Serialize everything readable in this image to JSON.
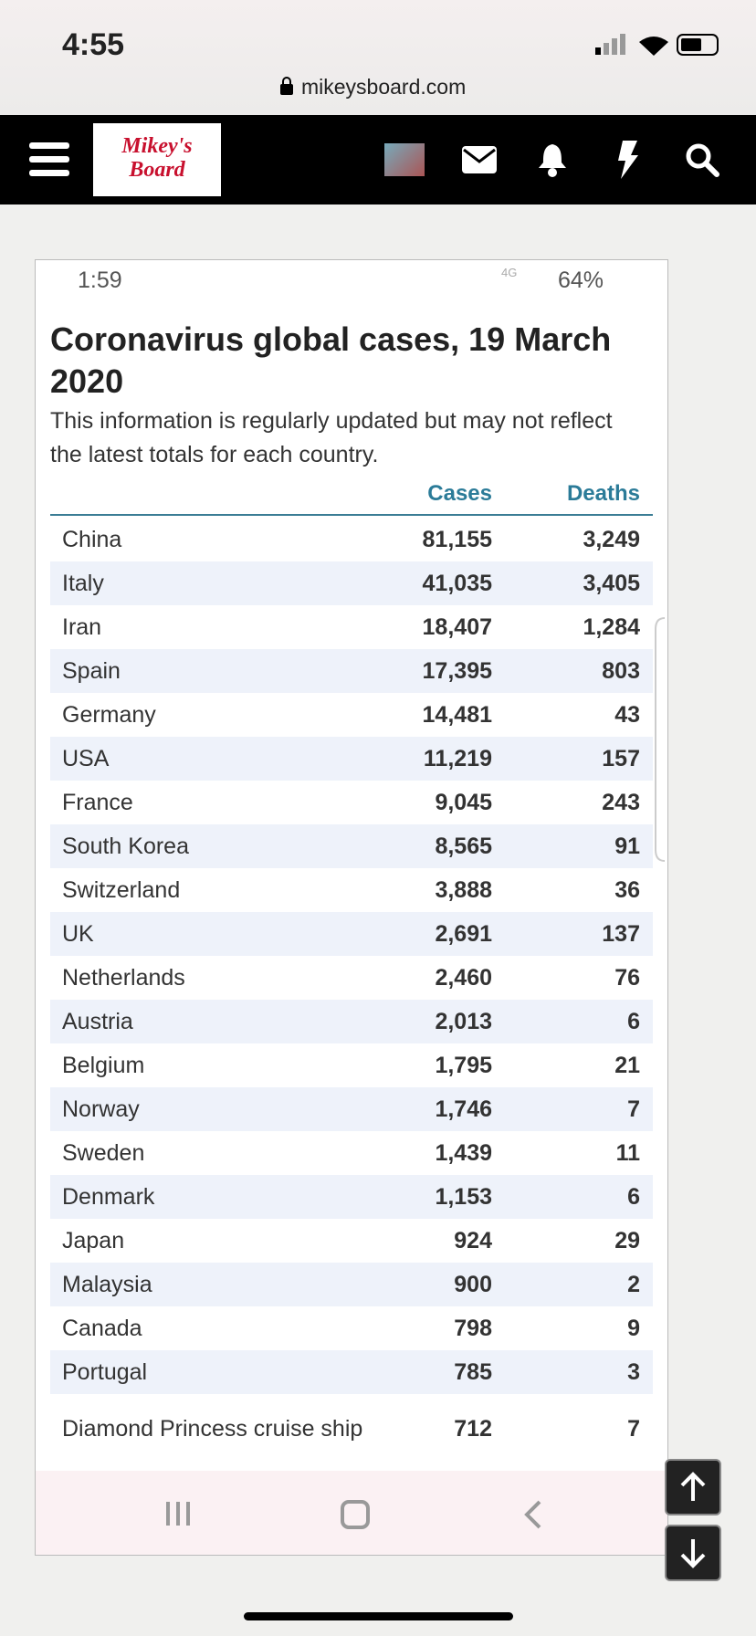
{
  "status_bar": {
    "time": "4:55"
  },
  "browser": {
    "url": "mikeysboard.com"
  },
  "nav": {
    "logo": [
      "Mikey's",
      "Board"
    ]
  },
  "screenshot": {
    "status_bar": {
      "time": "1:59",
      "network": "4G",
      "battery": "64%"
    },
    "title": "Coronavirus global cases, 19 March 2020",
    "subtitle": "This information is regularly updated but may not reflect the latest totals for each country.",
    "table": {
      "columns": [
        "Cases",
        "Deaths"
      ],
      "rows": [
        [
          "China",
          "81,155",
          "3,249"
        ],
        [
          "Italy",
          "41,035",
          "3,405"
        ],
        [
          "Iran",
          "18,407",
          "1,284"
        ],
        [
          "Spain",
          "17,395",
          "803"
        ],
        [
          "Germany",
          "14,481",
          "43"
        ],
        [
          "USA",
          "11,219",
          "157"
        ],
        [
          "France",
          "9,045",
          "243"
        ],
        [
          "South Korea",
          "8,565",
          "91"
        ],
        [
          "Switzerland",
          "3,888",
          "36"
        ],
        [
          "UK",
          "2,691",
          "137"
        ],
        [
          "Netherlands",
          "2,460",
          "76"
        ],
        [
          "Austria",
          "2,013",
          "6"
        ],
        [
          "Belgium",
          "1,795",
          "21"
        ],
        [
          "Norway",
          "1,746",
          "7"
        ],
        [
          "Sweden",
          "1,439",
          "11"
        ],
        [
          "Denmark",
          "1,153",
          "6"
        ],
        [
          "Japan",
          "924",
          "29"
        ],
        [
          "Malaysia",
          "900",
          "2"
        ],
        [
          "Canada",
          "798",
          "9"
        ],
        [
          "Portugal",
          "785",
          "3"
        ],
        [
          "Diamond Princess cruise ship",
          "712",
          "7"
        ]
      ]
    }
  }
}
